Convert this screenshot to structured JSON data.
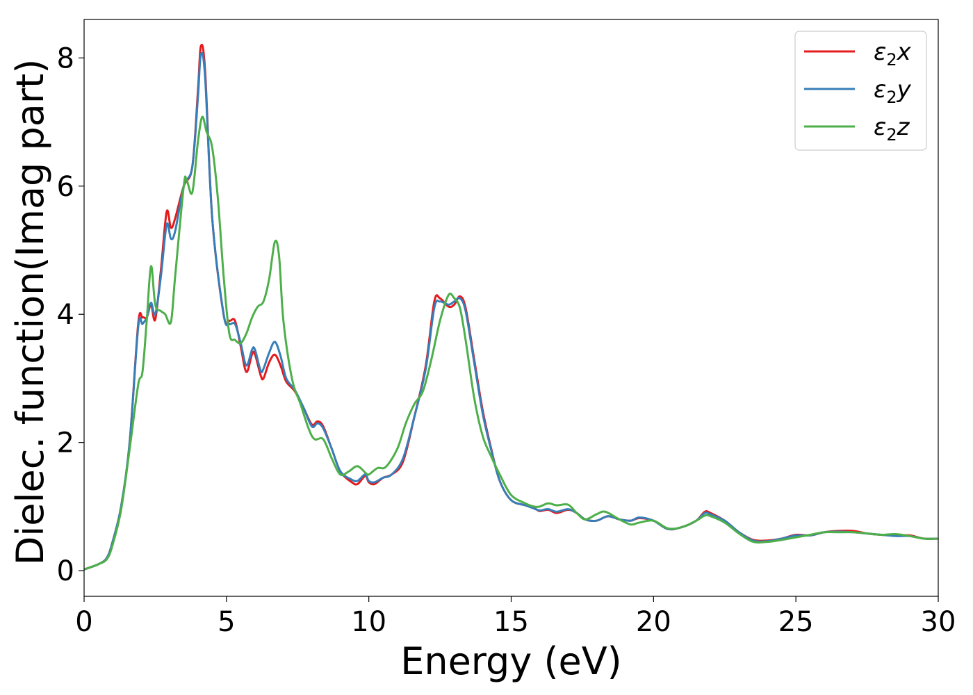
{
  "chart_data": {
    "type": "line",
    "title": "",
    "xlabel": "Energy (eV)",
    "ylabel": "Dielec. function(Imag part)",
    "xlim": [
      0,
      30
    ],
    "ylim": [
      -0.4,
      8.6
    ],
    "xticks": [
      0,
      5,
      10,
      15,
      20,
      25,
      30
    ],
    "yticks": [
      0,
      2,
      4,
      6,
      8
    ],
    "grid": false,
    "legend_position": "top-right",
    "series": [
      {
        "name": "ε₂x",
        "legend_main": "ε",
        "legend_sub": "2",
        "legend_var": "x",
        "color": "#e41a1c",
        "points": [
          [
            0,
            0.02
          ],
          [
            0.5,
            0.1
          ],
          [
            0.8,
            0.2
          ],
          [
            1.0,
            0.45
          ],
          [
            1.3,
            1.0
          ],
          [
            1.6,
            2.0
          ],
          [
            1.9,
            3.85
          ],
          [
            2.05,
            3.95
          ],
          [
            2.2,
            3.95
          ],
          [
            2.35,
            4.15
          ],
          [
            2.5,
            3.92
          ],
          [
            2.7,
            4.7
          ],
          [
            2.9,
            5.6
          ],
          [
            3.05,
            5.35
          ],
          [
            3.2,
            5.5
          ],
          [
            3.5,
            6.0
          ],
          [
            3.8,
            6.3
          ],
          [
            4.0,
            7.5
          ],
          [
            4.1,
            8.18
          ],
          [
            4.25,
            7.8
          ],
          [
            4.5,
            5.5
          ],
          [
            4.9,
            4.0
          ],
          [
            5.1,
            3.9
          ],
          [
            5.3,
            3.9
          ],
          [
            5.5,
            3.5
          ],
          [
            5.7,
            3.1
          ],
          [
            5.9,
            3.38
          ],
          [
            6.0,
            3.38
          ],
          [
            6.2,
            3.05
          ],
          [
            6.3,
            3.0
          ],
          [
            6.5,
            3.25
          ],
          [
            6.7,
            3.37
          ],
          [
            6.9,
            3.2
          ],
          [
            7.1,
            2.95
          ],
          [
            7.4,
            2.8
          ],
          [
            7.7,
            2.55
          ],
          [
            8.0,
            2.28
          ],
          [
            8.2,
            2.33
          ],
          [
            8.4,
            2.25
          ],
          [
            8.7,
            1.9
          ],
          [
            9.0,
            1.55
          ],
          [
            9.4,
            1.38
          ],
          [
            9.6,
            1.35
          ],
          [
            9.8,
            1.45
          ],
          [
            9.9,
            1.48
          ],
          [
            10.0,
            1.38
          ],
          [
            10.2,
            1.35
          ],
          [
            10.5,
            1.45
          ],
          [
            10.8,
            1.5
          ],
          [
            11.2,
            1.7
          ],
          [
            11.6,
            2.4
          ],
          [
            12.0,
            3.2
          ],
          [
            12.3,
            4.2
          ],
          [
            12.5,
            4.25
          ],
          [
            12.8,
            4.12
          ],
          [
            13.0,
            4.15
          ],
          [
            13.2,
            4.28
          ],
          [
            13.4,
            4.1
          ],
          [
            13.7,
            3.3
          ],
          [
            14.0,
            2.5
          ],
          [
            14.3,
            1.9
          ],
          [
            14.6,
            1.4
          ],
          [
            15.0,
            1.1
          ],
          [
            15.5,
            1.02
          ],
          [
            15.8,
            0.98
          ],
          [
            16.0,
            0.93
          ],
          [
            16.3,
            0.95
          ],
          [
            16.6,
            0.9
          ],
          [
            17.0,
            0.95
          ],
          [
            17.3,
            0.9
          ],
          [
            17.6,
            0.8
          ],
          [
            18.0,
            0.78
          ],
          [
            18.4,
            0.85
          ],
          [
            18.8,
            0.8
          ],
          [
            19.2,
            0.78
          ],
          [
            19.5,
            0.82
          ],
          [
            20.0,
            0.78
          ],
          [
            20.5,
            0.65
          ],
          [
            21.0,
            0.68
          ],
          [
            21.5,
            0.78
          ],
          [
            21.8,
            0.92
          ],
          [
            22.0,
            0.9
          ],
          [
            22.5,
            0.78
          ],
          [
            23.0,
            0.6
          ],
          [
            23.5,
            0.48
          ],
          [
            24.0,
            0.47
          ],
          [
            24.5,
            0.5
          ],
          [
            25.0,
            0.56
          ],
          [
            25.5,
            0.55
          ],
          [
            26.0,
            0.6
          ],
          [
            26.5,
            0.62
          ],
          [
            27.0,
            0.62
          ],
          [
            27.5,
            0.58
          ],
          [
            28.0,
            0.56
          ],
          [
            28.5,
            0.55
          ],
          [
            29.0,
            0.55
          ],
          [
            29.5,
            0.5
          ],
          [
            30.0,
            0.5
          ]
        ]
      },
      {
        "name": "ε₂y",
        "legend_main": "ε",
        "legend_sub": "2",
        "legend_var": "y",
        "color": "#377eb8",
        "points": [
          [
            0,
            0.02
          ],
          [
            0.5,
            0.1
          ],
          [
            0.8,
            0.2
          ],
          [
            1.0,
            0.45
          ],
          [
            1.3,
            1.0
          ],
          [
            1.6,
            2.0
          ],
          [
            1.9,
            3.8
          ],
          [
            2.05,
            3.85
          ],
          [
            2.2,
            3.95
          ],
          [
            2.35,
            4.18
          ],
          [
            2.5,
            4.0
          ],
          [
            2.7,
            4.6
          ],
          [
            2.9,
            5.4
          ],
          [
            3.05,
            5.18
          ],
          [
            3.2,
            5.3
          ],
          [
            3.5,
            6.0
          ],
          [
            3.8,
            6.3
          ],
          [
            4.0,
            7.4
          ],
          [
            4.1,
            8.05
          ],
          [
            4.25,
            7.7
          ],
          [
            4.5,
            5.5
          ],
          [
            4.9,
            4.0
          ],
          [
            5.1,
            3.85
          ],
          [
            5.3,
            3.85
          ],
          [
            5.5,
            3.55
          ],
          [
            5.7,
            3.2
          ],
          [
            5.9,
            3.45
          ],
          [
            6.0,
            3.45
          ],
          [
            6.2,
            3.12
          ],
          [
            6.3,
            3.15
          ],
          [
            6.5,
            3.4
          ],
          [
            6.7,
            3.57
          ],
          [
            6.9,
            3.35
          ],
          [
            7.1,
            3.0
          ],
          [
            7.4,
            2.82
          ],
          [
            7.7,
            2.55
          ],
          [
            8.0,
            2.25
          ],
          [
            8.2,
            2.3
          ],
          [
            8.4,
            2.22
          ],
          [
            8.7,
            1.9
          ],
          [
            9.0,
            1.55
          ],
          [
            9.4,
            1.42
          ],
          [
            9.6,
            1.4
          ],
          [
            9.8,
            1.48
          ],
          [
            9.9,
            1.5
          ],
          [
            10.0,
            1.4
          ],
          [
            10.2,
            1.38
          ],
          [
            10.5,
            1.45
          ],
          [
            10.8,
            1.5
          ],
          [
            11.2,
            1.75
          ],
          [
            11.6,
            2.4
          ],
          [
            12.0,
            3.15
          ],
          [
            12.3,
            4.1
          ],
          [
            12.5,
            4.2
          ],
          [
            12.8,
            4.15
          ],
          [
            13.0,
            4.2
          ],
          [
            13.2,
            4.25
          ],
          [
            13.4,
            4.05
          ],
          [
            13.7,
            3.25
          ],
          [
            14.0,
            2.45
          ],
          [
            14.3,
            1.88
          ],
          [
            14.6,
            1.4
          ],
          [
            15.0,
            1.1
          ],
          [
            15.5,
            1.02
          ],
          [
            15.8,
            0.97
          ],
          [
            16.0,
            0.94
          ],
          [
            16.3,
            0.96
          ],
          [
            16.6,
            0.92
          ],
          [
            17.0,
            0.96
          ],
          [
            17.3,
            0.9
          ],
          [
            17.6,
            0.8
          ],
          [
            18.0,
            0.78
          ],
          [
            18.4,
            0.85
          ],
          [
            18.8,
            0.8
          ],
          [
            19.2,
            0.78
          ],
          [
            19.5,
            0.83
          ],
          [
            20.0,
            0.78
          ],
          [
            20.5,
            0.65
          ],
          [
            21.0,
            0.68
          ],
          [
            21.5,
            0.78
          ],
          [
            21.8,
            0.9
          ],
          [
            22.0,
            0.88
          ],
          [
            22.5,
            0.78
          ],
          [
            23.0,
            0.6
          ],
          [
            23.5,
            0.47
          ],
          [
            24.0,
            0.46
          ],
          [
            24.5,
            0.5
          ],
          [
            25.0,
            0.55
          ],
          [
            25.5,
            0.55
          ],
          [
            26.0,
            0.6
          ],
          [
            26.5,
            0.61
          ],
          [
            27.0,
            0.6
          ],
          [
            27.5,
            0.58
          ],
          [
            28.0,
            0.56
          ],
          [
            28.5,
            0.54
          ],
          [
            29.0,
            0.54
          ],
          [
            29.5,
            0.5
          ],
          [
            30.0,
            0.5
          ]
        ]
      },
      {
        "name": "ε₂z",
        "legend_main": "ε",
        "legend_sub": "2",
        "legend_var": "z",
        "color": "#4daf4a",
        "points": [
          [
            0,
            0.02
          ],
          [
            0.5,
            0.1
          ],
          [
            0.8,
            0.18
          ],
          [
            1.0,
            0.4
          ],
          [
            1.3,
            0.95
          ],
          [
            1.6,
            1.9
          ],
          [
            1.9,
            2.9
          ],
          [
            2.05,
            3.1
          ],
          [
            2.2,
            3.9
          ],
          [
            2.35,
            4.75
          ],
          [
            2.5,
            4.15
          ],
          [
            2.7,
            4.05
          ],
          [
            2.85,
            4.0
          ],
          [
            3.05,
            3.88
          ],
          [
            3.2,
            4.6
          ],
          [
            3.5,
            6.0
          ],
          [
            3.6,
            6.1
          ],
          [
            3.8,
            5.9
          ],
          [
            4.0,
            6.7
          ],
          [
            4.15,
            7.08
          ],
          [
            4.3,
            6.85
          ],
          [
            4.5,
            6.6
          ],
          [
            4.7,
            5.8
          ],
          [
            4.9,
            4.6
          ],
          [
            5.1,
            3.7
          ],
          [
            5.3,
            3.6
          ],
          [
            5.5,
            3.55
          ],
          [
            5.7,
            3.7
          ],
          [
            5.9,
            3.95
          ],
          [
            6.1,
            4.12
          ],
          [
            6.3,
            4.2
          ],
          [
            6.5,
            4.55
          ],
          [
            6.7,
            5.13
          ],
          [
            6.85,
            4.9
          ],
          [
            7.0,
            3.9
          ],
          [
            7.3,
            3.0
          ],
          [
            7.6,
            2.6
          ],
          [
            7.9,
            2.2
          ],
          [
            8.1,
            2.05
          ],
          [
            8.4,
            2.05
          ],
          [
            8.7,
            1.75
          ],
          [
            9.0,
            1.5
          ],
          [
            9.3,
            1.55
          ],
          [
            9.6,
            1.63
          ],
          [
            9.9,
            1.52
          ],
          [
            10.0,
            1.5
          ],
          [
            10.3,
            1.6
          ],
          [
            10.6,
            1.62
          ],
          [
            11.0,
            1.9
          ],
          [
            11.3,
            2.3
          ],
          [
            11.6,
            2.6
          ],
          [
            11.9,
            2.8
          ],
          [
            12.2,
            3.3
          ],
          [
            12.5,
            3.9
          ],
          [
            12.8,
            4.3
          ],
          [
            13.0,
            4.25
          ],
          [
            13.2,
            4.1
          ],
          [
            13.4,
            3.6
          ],
          [
            13.7,
            2.7
          ],
          [
            14.0,
            2.1
          ],
          [
            14.3,
            1.78
          ],
          [
            14.6,
            1.5
          ],
          [
            15.0,
            1.18
          ],
          [
            15.5,
            1.05
          ],
          [
            15.8,
            1.0
          ],
          [
            16.0,
            1.0
          ],
          [
            16.3,
            1.05
          ],
          [
            16.6,
            1.02
          ],
          [
            17.0,
            1.03
          ],
          [
            17.3,
            0.9
          ],
          [
            17.6,
            0.8
          ],
          [
            18.0,
            0.88
          ],
          [
            18.3,
            0.92
          ],
          [
            18.8,
            0.8
          ],
          [
            19.2,
            0.72
          ],
          [
            19.5,
            0.75
          ],
          [
            20.0,
            0.78
          ],
          [
            20.5,
            0.66
          ],
          [
            21.0,
            0.68
          ],
          [
            21.5,
            0.78
          ],
          [
            21.8,
            0.86
          ],
          [
            22.0,
            0.85
          ],
          [
            22.5,
            0.75
          ],
          [
            23.0,
            0.58
          ],
          [
            23.5,
            0.45
          ],
          [
            24.0,
            0.45
          ],
          [
            24.5,
            0.48
          ],
          [
            25.0,
            0.52
          ],
          [
            25.5,
            0.56
          ],
          [
            26.0,
            0.6
          ],
          [
            26.5,
            0.6
          ],
          [
            27.0,
            0.6
          ],
          [
            27.5,
            0.58
          ],
          [
            28.0,
            0.56
          ],
          [
            28.5,
            0.57
          ],
          [
            29.0,
            0.54
          ],
          [
            29.5,
            0.5
          ],
          [
            30.0,
            0.5
          ]
        ]
      }
    ]
  }
}
